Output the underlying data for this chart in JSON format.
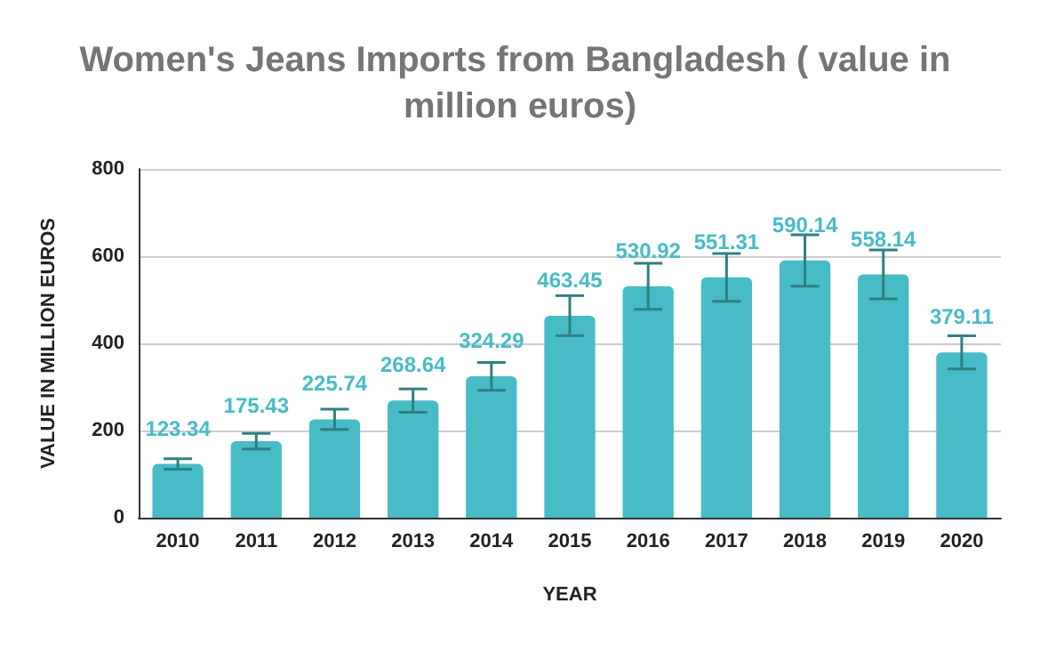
{
  "chart_data": {
    "type": "bar",
    "title": "Women's Jeans Imports from Bangladesh ( value in million euros)",
    "xlabel": "YEAR",
    "ylabel": "VALUE IN MILLION EUROS",
    "categories": [
      "2010",
      "2011",
      "2012",
      "2013",
      "2014",
      "2015",
      "2016",
      "2017",
      "2018",
      "2019",
      "2020"
    ],
    "values": [
      123.34,
      175.43,
      225.74,
      268.64,
      324.29,
      463.45,
      530.92,
      551.31,
      590.14,
      558.14,
      379.11
    ],
    "errors": [
      12,
      18,
      23,
      27,
      32,
      46,
      53,
      55,
      59,
      56,
      38
    ],
    "color": "#47bcc6",
    "data_labels": true,
    "ylim": [
      0,
      800
    ],
    "yticks": [
      0,
      200,
      400,
      600,
      800
    ],
    "grid": "y"
  }
}
